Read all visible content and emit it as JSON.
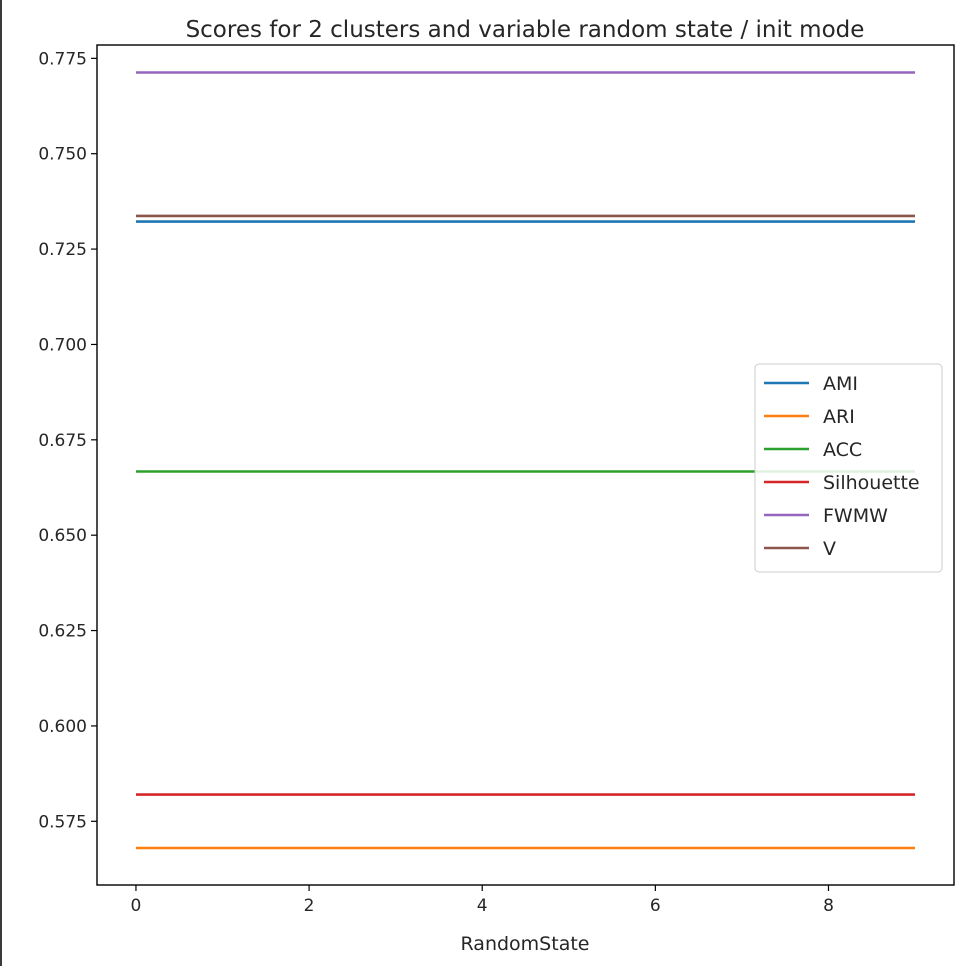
{
  "chart_data": {
    "type": "line",
    "title": "Scores for 2 clusters and variable random state / init mode",
    "xlabel": "RandomState",
    "ylabel": "",
    "x": [
      0,
      1,
      2,
      3,
      4,
      5,
      6,
      7,
      8,
      9
    ],
    "xlim": [
      -0.45,
      9.45
    ],
    "ylim": [
      0.5583,
      0.7785
    ],
    "xticks": [
      0,
      2,
      4,
      6,
      8
    ],
    "yticks": [
      0.575,
      0.6,
      0.625,
      0.65,
      0.675,
      0.7,
      0.725,
      0.75,
      0.775
    ],
    "ytick_labels": [
      "0.575",
      "0.600",
      "0.625",
      "0.650",
      "0.675",
      "0.700",
      "0.725",
      "0.750",
      "0.775"
    ],
    "grid": false,
    "legend_position": "center right",
    "series": [
      {
        "name": "AMI",
        "color": "#1f77b4",
        "values": [
          0.7322,
          0.7322,
          0.7322,
          0.7322,
          0.7322,
          0.7322,
          0.7322,
          0.7322,
          0.7322,
          0.7322
        ]
      },
      {
        "name": "ARI",
        "color": "#ff7f0e",
        "values": [
          0.568,
          0.568,
          0.568,
          0.568,
          0.568,
          0.568,
          0.568,
          0.568,
          0.568,
          0.568
        ]
      },
      {
        "name": "ACC",
        "color": "#2ca02c",
        "values": [
          0.6667,
          0.6667,
          0.6667,
          0.6667,
          0.6667,
          0.6667,
          0.6667,
          0.6667,
          0.6667,
          0.6667
        ]
      },
      {
        "name": "Silhouette",
        "color": "#d62728",
        "values": [
          0.582,
          0.582,
          0.582,
          0.582,
          0.582,
          0.582,
          0.582,
          0.582,
          0.582,
          0.582
        ]
      },
      {
        "name": "FWMW",
        "color": "#9467bd",
        "values": [
          0.7713,
          0.7713,
          0.7713,
          0.7713,
          0.7713,
          0.7713,
          0.7713,
          0.7713,
          0.7713,
          0.7713
        ]
      },
      {
        "name": "V",
        "color": "#8c564b",
        "values": [
          0.7337,
          0.7337,
          0.7337,
          0.7337,
          0.7337,
          0.7337,
          0.7337,
          0.7337,
          0.7337,
          0.7337
        ]
      }
    ]
  }
}
